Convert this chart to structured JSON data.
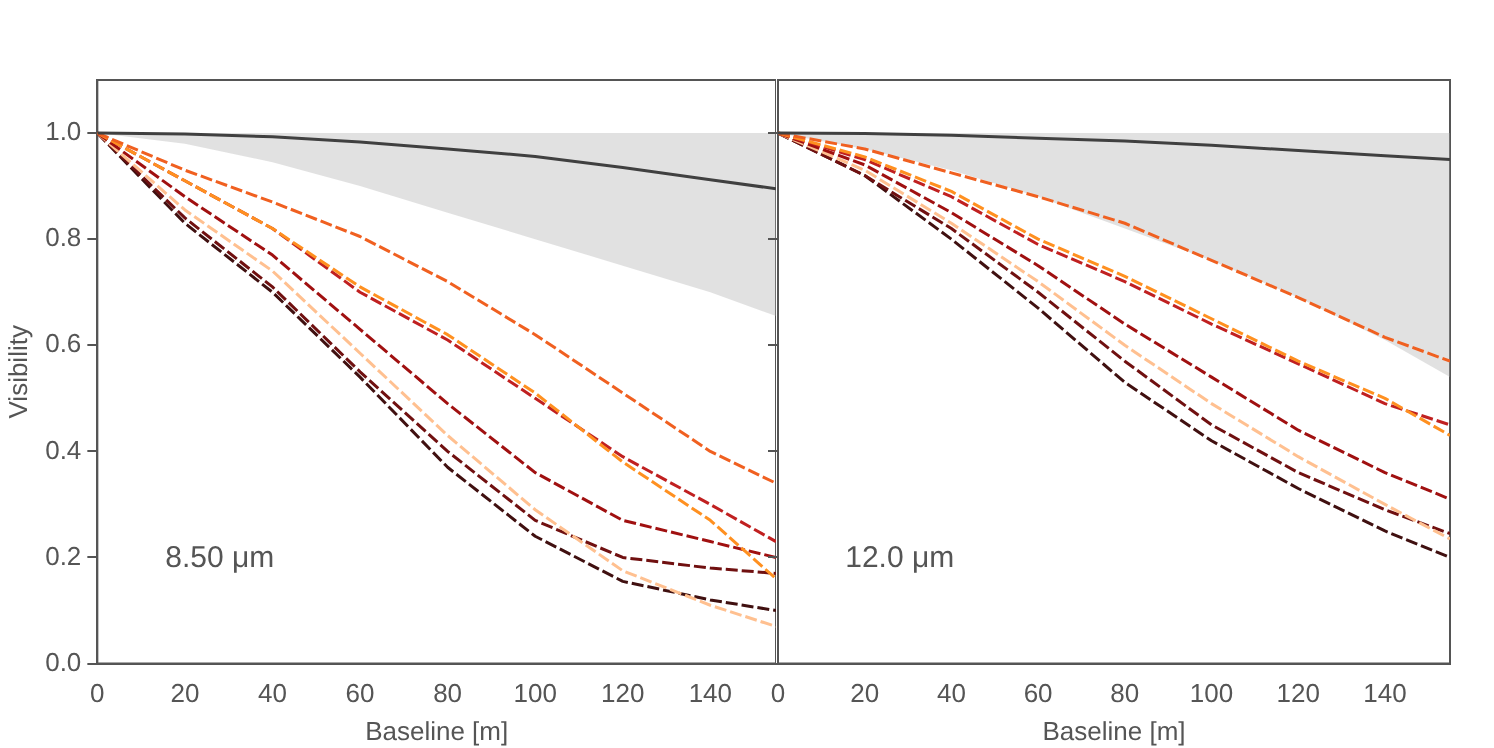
{
  "chart_data": [
    {
      "type": "line",
      "xlabel": "Baseline [m]",
      "ylabel": "Visibility",
      "annotations": [
        "8.50 μm"
      ],
      "x": [
        0,
        20,
        40,
        60,
        80,
        100,
        120,
        140,
        155
      ],
      "xlim": [
        0,
        155
      ],
      "xticks": [
        0,
        20,
        40,
        60,
        80,
        100,
        120,
        140
      ],
      "ylim": [
        0,
        1.1
      ],
      "yticks": [
        {
          "value": 0,
          "label": "0.0"
        },
        0.2,
        0.4,
        0.6,
        0.8,
        {
          "value": 1,
          "label": "1.0"
        }
      ],
      "grid": false,
      "legend": false,
      "marker": "none",
      "series": [
        {
          "color": "#404040",
          "line_style": "solid",
          "values": [
            1.0,
            0.998,
            0.993,
            0.983,
            0.97,
            0.956,
            0.935,
            0.912,
            0.895
          ],
          "lower": [
            1.0,
            0.98,
            0.945,
            0.9,
            0.85,
            0.8,
            0.75,
            0.7,
            0.655
          ],
          "upper": [
            1.0,
            1.0,
            1.0,
            1.0,
            1.0,
            1.0,
            1.0,
            1.0,
            1.0
          ]
        },
        {
          "color": "#f06020",
          "line_style": "dashed",
          "values": [
            1.0,
            0.93,
            0.87,
            0.805,
            0.72,
            0.62,
            0.51,
            0.4,
            0.34
          ]
        },
        {
          "color": "#ff9020",
          "line_style": "dashed",
          "values": [
            1.0,
            0.91,
            0.82,
            0.71,
            0.62,
            0.51,
            0.38,
            0.27,
            0.16
          ]
        },
        {
          "color": "#c02020",
          "line_style": "dashed",
          "values": [
            1.0,
            0.91,
            0.82,
            0.7,
            0.61,
            0.5,
            0.39,
            0.3,
            0.23
          ]
        },
        {
          "color": "#a01010",
          "line_style": "dashed",
          "values": [
            1.0,
            0.88,
            0.77,
            0.63,
            0.49,
            0.36,
            0.27,
            0.23,
            0.2
          ]
        },
        {
          "color": "#ffc090",
          "line_style": "dashed",
          "values": [
            1.0,
            0.855,
            0.74,
            0.585,
            0.43,
            0.29,
            0.175,
            0.11,
            0.07
          ]
        },
        {
          "color": "#701010",
          "line_style": "dashed",
          "values": [
            1.0,
            0.84,
            0.71,
            0.55,
            0.4,
            0.27,
            0.2,
            0.18,
            0.17
          ]
        },
        {
          "color": "#401010",
          "line_style": "dashed",
          "values": [
            1.0,
            0.83,
            0.7,
            0.54,
            0.37,
            0.24,
            0.155,
            0.12,
            0.1
          ]
        }
      ]
    },
    {
      "type": "line",
      "xlabel": "Baseline [m]",
      "annotations": [
        "12.0 μm"
      ],
      "x": [
        0,
        20,
        40,
        60,
        80,
        100,
        120,
        140,
        155
      ],
      "xlim": [
        0,
        155
      ],
      "xticks": [
        0,
        20,
        40,
        60,
        80,
        100,
        120,
        140
      ],
      "ylim": [
        0,
        1.1
      ],
      "yticks": [
        {
          "value": 0.0,
          "label": null
        },
        {
          "value": 0.2,
          "label": null
        },
        {
          "value": 0.4,
          "label": null
        },
        {
          "value": 0.6,
          "label": null
        },
        {
          "value": 0.8,
          "label": null
        },
        {
          "value": 1.0,
          "label": null
        }
      ],
      "tick_labels": "x",
      "grid": false,
      "legend": false,
      "marker": "none",
      "series": [
        {
          "color": "#404040",
          "line_style": "solid",
          "values": [
            1.0,
            0.999,
            0.996,
            0.99,
            0.985,
            0.977,
            0.967,
            0.957,
            0.95
          ],
          "lower": [
            1.0,
            0.97,
            0.93,
            0.88,
            0.82,
            0.76,
            0.69,
            0.61,
            0.54
          ],
          "upper": [
            1.0,
            1.0,
            1.0,
            1.0,
            1.0,
            1.0,
            1.0,
            1.0,
            1.0
          ]
        },
        {
          "color": "#f06020",
          "line_style": "dashed",
          "values": [
            1.0,
            0.97,
            0.925,
            0.88,
            0.83,
            0.76,
            0.69,
            0.615,
            0.57
          ]
        },
        {
          "color": "#ff9020",
          "line_style": "dashed",
          "values": [
            1.0,
            0.955,
            0.89,
            0.8,
            0.73,
            0.65,
            0.57,
            0.5,
            0.43
          ]
        },
        {
          "color": "#c02020",
          "line_style": "dashed",
          "values": [
            1.0,
            0.95,
            0.88,
            0.79,
            0.72,
            0.64,
            0.565,
            0.49,
            0.45
          ]
        },
        {
          "color": "#a01010",
          "line_style": "dashed",
          "values": [
            1.0,
            0.94,
            0.85,
            0.75,
            0.64,
            0.54,
            0.44,
            0.36,
            0.31
          ]
        },
        {
          "color": "#ffc090",
          "line_style": "dashed",
          "values": [
            1.0,
            0.93,
            0.83,
            0.72,
            0.6,
            0.49,
            0.39,
            0.3,
            0.235
          ]
        },
        {
          "color": "#701010",
          "line_style": "dashed",
          "values": [
            1.0,
            0.92,
            0.82,
            0.7,
            0.57,
            0.45,
            0.36,
            0.29,
            0.245
          ]
        },
        {
          "color": "#401010",
          "line_style": "dashed",
          "values": [
            1.0,
            0.92,
            0.8,
            0.67,
            0.53,
            0.42,
            0.33,
            0.25,
            0.2
          ]
        }
      ]
    }
  ]
}
